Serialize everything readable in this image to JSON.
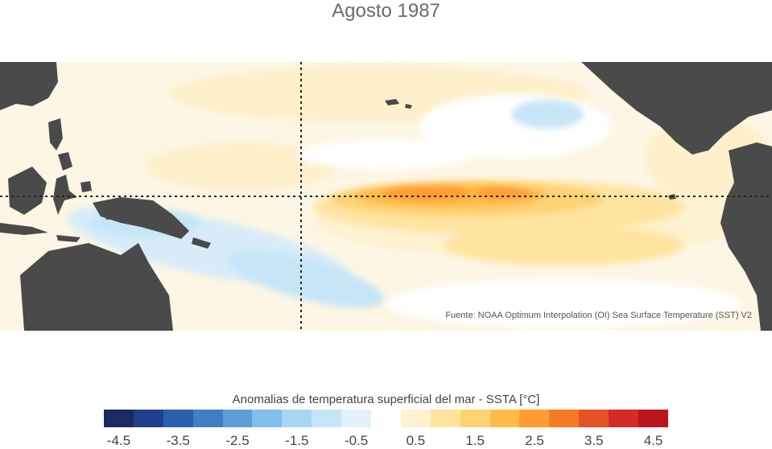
{
  "title": "Agosto 1987",
  "source": "Fuente: NOAA Optimum Interpolation (OI) Sea Surface Temperature (SST) V2",
  "colorbar": {
    "title": "Anomalias de temperatura superficial del mar - SSTA  [°C]",
    "colors": [
      "#1b2a63",
      "#223f8c",
      "#2a5fae",
      "#3f7fc2",
      "#5c9fd6",
      "#80bfe9",
      "#a7d6f3",
      "#c6e6f8",
      "#e2f2fb",
      "#ffffff",
      "#fff2d0",
      "#ffe4a0",
      "#ffd272",
      "#ffbb48",
      "#ff9d32",
      "#f57a26",
      "#e55226",
      "#d52a26",
      "#b8151e"
    ],
    "tick_labels": [
      "-4.5",
      "-3.5",
      "-2.5",
      "-1.5",
      "-0.5",
      "0.5",
      "1.5",
      "2.5",
      "3.5",
      "4.5"
    ]
  },
  "map": {
    "land_color": "#4a4a4a",
    "region": "Tropical Pacific Ocean",
    "guides": [
      "equator",
      "dateline"
    ]
  }
}
